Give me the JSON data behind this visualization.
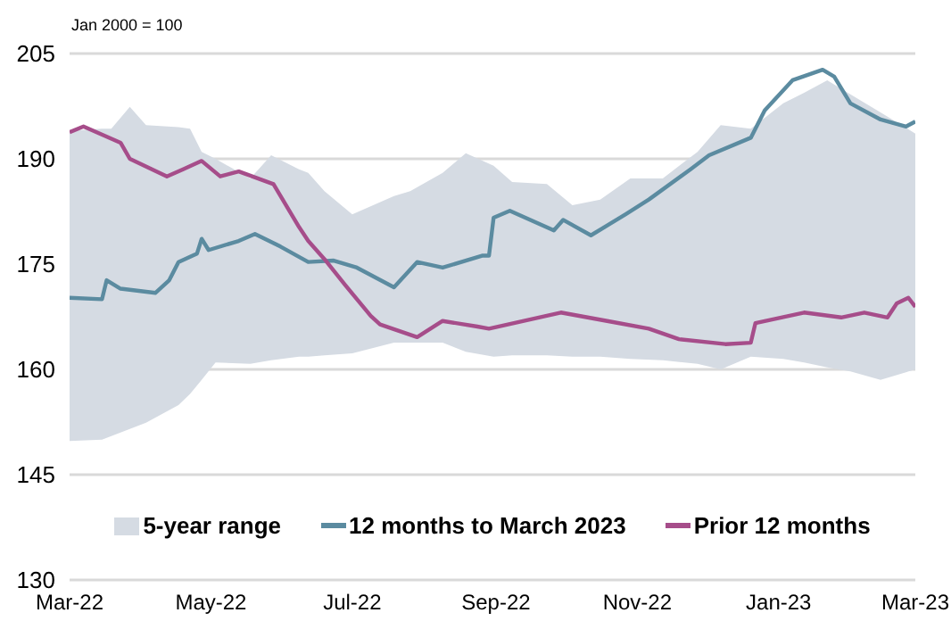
{
  "chart_data": {
    "type": "line",
    "ylabel": "Jan 2000 = 100",
    "xlim": [
      "2022-03-01",
      "2023-03-01"
    ],
    "xticks": [
      {
        "value": "2022-03-01",
        "label": "Mar-22"
      },
      {
        "value": "2022-05-01",
        "label": "May-22"
      },
      {
        "value": "2022-07-01",
        "label": "Jul-22"
      },
      {
        "value": "2022-09-01",
        "label": "Sep-22"
      },
      {
        "value": "2022-11-01",
        "label": "Nov-22"
      },
      {
        "value": "2023-01-01",
        "label": "Jan-23"
      },
      {
        "value": "2023-03-01",
        "label": "Mar-23"
      }
    ],
    "ylim": [
      130,
      205
    ],
    "yticks": [
      130,
      145,
      160,
      175,
      190,
      205
    ],
    "grid": "y",
    "legend": "bottom",
    "line_style": "solid",
    "marker": "none",
    "series": [
      {
        "name": "5-year range",
        "color": "#d5dbe3",
        "values": [
          null,
          null,
          null,
          null,
          null,
          null,
          null,
          null,
          null,
          null,
          null,
          null,
          null,
          null,
          null,
          null,
          null,
          null,
          null,
          null,
          null,
          null,
          null,
          null,
          null,
          null,
          null,
          null,
          null,
          null,
          null,
          null,
          null,
          null,
          null
        ],
        "x": [
          "2022-03-01",
          "2022-03-15",
          "2022-03-19",
          "2022-03-27",
          "2022-04-03",
          "2022-04-17",
          "2022-04-22",
          "2022-04-27",
          "2022-05-03",
          "2022-05-18",
          "2022-05-27",
          "2022-06-08",
          "2022-06-12",
          "2022-06-19",
          "2022-07-01",
          "2022-07-19",
          "2022-07-26",
          "2022-08-09",
          "2022-08-19",
          "2022-08-31",
          "2022-09-08",
          "2022-09-23",
          "2022-10-04",
          "2022-10-16",
          "2022-10-29",
          "2022-11-12",
          "2022-11-27",
          "2022-12-07",
          "2022-12-20",
          "2023-01-03",
          "2023-01-12",
          "2023-01-22",
          "2023-02-01",
          "2023-02-14",
          "2023-03-01"
        ],
        "upper": [
          194,
          194.3,
          194.3,
          197.4,
          194.8,
          194.5,
          194.3,
          191,
          190,
          187.2,
          190.5,
          188.5,
          188,
          185.4,
          182.1,
          184.7,
          185.4,
          188,
          190.8,
          189,
          186.7,
          186.4,
          183.4,
          184.2,
          187.2,
          187.2,
          191,
          194.8,
          194.3,
          197.9,
          199.4,
          201.2,
          199.2,
          196.6,
          193.6
        ],
        "lower": [
          149.8,
          150,
          150.5,
          151.5,
          152.4,
          154.9,
          156.5,
          158.5,
          161,
          160.8,
          161.3,
          161.8,
          161.8,
          162,
          162.3,
          163.8,
          163.8,
          163.8,
          162.5,
          161.8,
          162,
          162,
          161.8,
          161.8,
          161.5,
          161.3,
          160.8,
          160,
          161.8,
          161.5,
          161,
          160.3,
          159.7,
          158.5,
          160
        ]
      },
      {
        "name": "12 months to March 2023",
        "color": "#5b8ba0",
        "x": [
          "2022-03-01",
          "2022-03-15",
          "2022-03-17",
          "2022-03-23",
          "2022-04-07",
          "2022-04-13",
          "2022-04-17",
          "2022-04-25",
          "2022-04-27",
          "2022-04-30",
          "2022-05-13",
          "2022-05-20",
          "2022-05-31",
          "2022-06-12",
          "2022-06-23",
          "2022-07-03",
          "2022-07-19",
          "2022-07-29",
          "2022-08-09",
          "2022-08-26",
          "2022-08-29",
          "2022-08-31",
          "2022-09-07",
          "2022-09-26",
          "2022-09-30",
          "2022-10-12",
          "2022-10-27",
          "2022-11-06",
          "2022-11-24",
          "2022-12-02",
          "2022-12-20",
          "2022-12-26",
          "2023-01-07",
          "2023-01-20",
          "2023-01-25",
          "2023-02-01",
          "2023-02-14",
          "2023-02-25",
          "2023-03-01"
        ],
        "values": [
          170.2,
          170,
          172.7,
          171.5,
          170.9,
          172.7,
          175.3,
          176.5,
          178.6,
          177,
          178.3,
          179.3,
          177.5,
          175.3,
          175.5,
          174.5,
          171.7,
          175.3,
          174.5,
          176.2,
          176.2,
          181.6,
          182.6,
          179.8,
          181.3,
          179.1,
          182.1,
          184.2,
          188.5,
          190.5,
          193,
          196.9,
          201.2,
          202.7,
          201.7,
          197.9,
          195.6,
          194.6,
          195.3
        ]
      },
      {
        "name": "Prior 12 months",
        "color": "#a64d8a",
        "x": [
          "2022-03-01",
          "2022-03-07",
          "2022-03-23",
          "2022-03-27",
          "2022-04-12",
          "2022-04-19",
          "2022-04-27",
          "2022-05-05",
          "2022-05-13",
          "2022-05-28",
          "2022-06-08",
          "2022-06-12",
          "2022-06-19",
          "2022-06-28",
          "2022-07-09",
          "2022-07-13",
          "2022-07-29",
          "2022-08-09",
          "2022-08-24",
          "2022-08-29",
          "2022-09-29",
          "2022-10-19",
          "2022-11-06",
          "2022-11-19",
          "2022-12-09",
          "2022-12-20",
          "2022-12-22",
          "2023-01-12",
          "2023-01-28",
          "2023-02-07",
          "2023-02-17",
          "2023-02-21",
          "2023-02-26",
          "2023-03-01"
        ],
        "values": [
          193.8,
          194.6,
          192.3,
          190,
          187.5,
          188.5,
          189.7,
          187.5,
          188.2,
          186.4,
          180.3,
          178.3,
          175.7,
          172,
          167.6,
          166.4,
          164.6,
          166.9,
          166.1,
          165.8,
          168.1,
          166.9,
          165.8,
          164.3,
          163.6,
          163.8,
          166.6,
          168.1,
          167.4,
          168.1,
          167.4,
          169.4,
          170.2,
          168.9
        ]
      }
    ]
  }
}
